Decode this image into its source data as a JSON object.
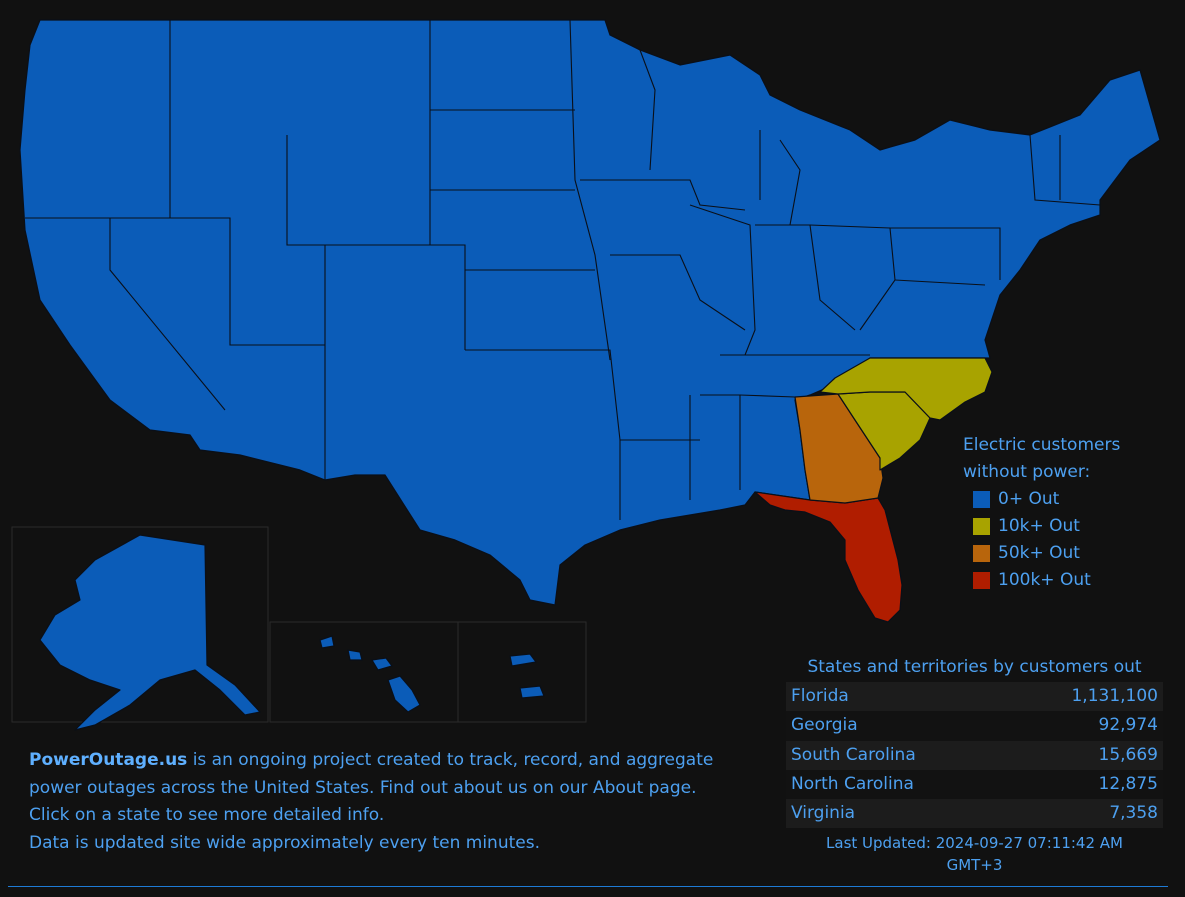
{
  "legend": {
    "title": "Electric customers without power:",
    "items": [
      {
        "label": "0+ Out",
        "color": "#0b5cb8"
      },
      {
        "label": "10k+ Out",
        "color": "#a8a300"
      },
      {
        "label": "50k+ Out",
        "color": "#b8650c"
      },
      {
        "label": "100k+ Out",
        "color": "#b01d00"
      }
    ]
  },
  "states_table": {
    "title": "States and territories by customers out",
    "rows": [
      {
        "name": "Florida",
        "value": "1,131,100"
      },
      {
        "name": "Georgia",
        "value": "92,974"
      },
      {
        "name": "South Carolina",
        "value": "15,669"
      },
      {
        "name": "North Carolina",
        "value": "12,875"
      },
      {
        "name": "Virginia",
        "value": "7,358"
      }
    ],
    "last_updated": "Last Updated: 2024-09-27 07:11:42 AM GMT+3"
  },
  "about": {
    "brand": "PowerOutage.us",
    "line1_rest": " is an ongoing project created to track, record, and aggregate",
    "line2_before": "power outages across the United States. Find out about us on our ",
    "about_link": "About",
    "line2_after": " page.",
    "line3": "Click on a state to see more detailed info.",
    "line4": "Data is updated site wide approximately every ten minutes."
  }
}
